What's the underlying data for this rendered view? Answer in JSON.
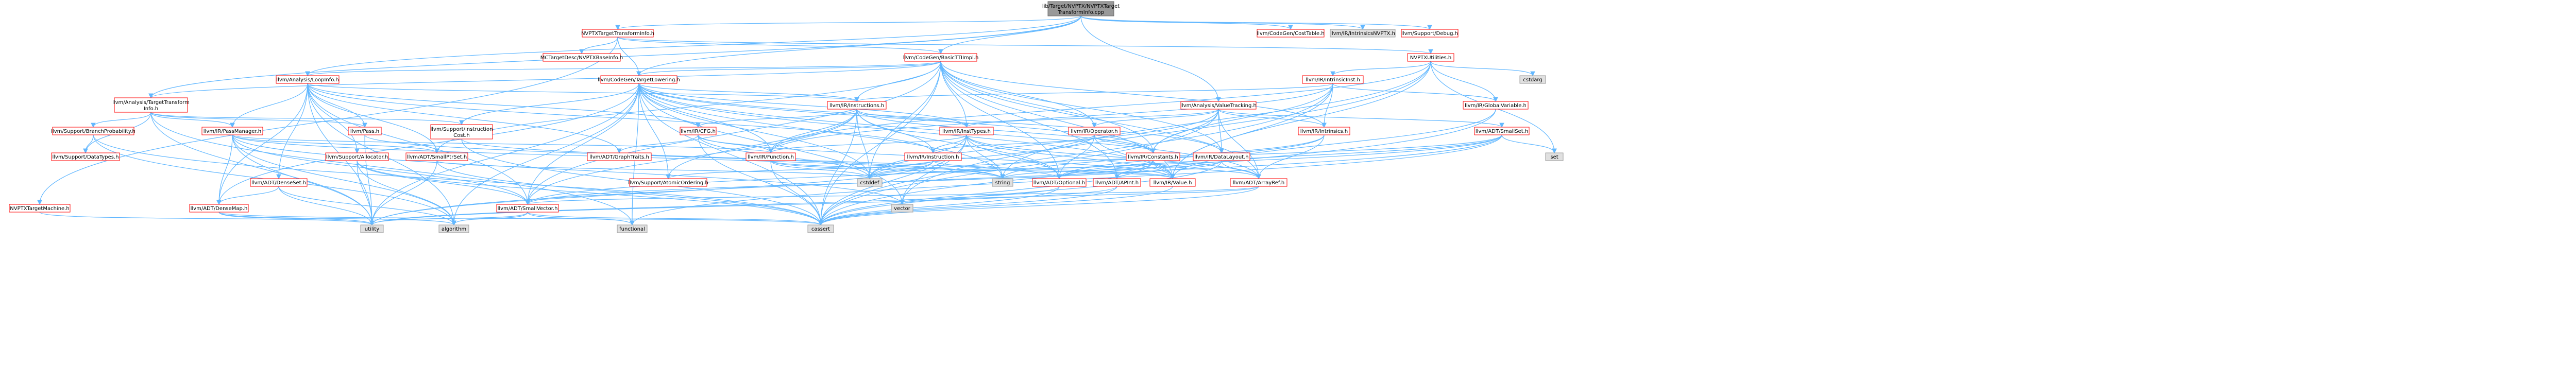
{
  "colors": {
    "edge": "#63b8ff",
    "root_fill": "#999999",
    "root_stroke": "#666666",
    "link_fill": "#ffffff",
    "link_stroke": "#ff0000",
    "ext_fill": "#e0e0e0",
    "ext_stroke": "#999999"
  },
  "nodes": {
    "root": {
      "label1": "lib/Target/NVPTX/NVPTXTarget",
      "label2": "TransformInfo.cpp",
      "kind": "root"
    },
    "nvptxtti": {
      "label": "NVPTXTargetTransformInfo.h",
      "kind": "link"
    },
    "codegencosttable": {
      "label": "llvm/CodeGen/CostTable.h",
      "kind": "link"
    },
    "intrinsicsnvptx": {
      "label": "llvm/IR/IntrinsicsNVPTX.h",
      "kind": "ext"
    },
    "supportdebug": {
      "label": "llvm/Support/Debug.h",
      "kind": "link"
    },
    "nvptxutilities": {
      "label": "NVPTXUtilities.h",
      "kind": "link"
    },
    "mctargetdesc": {
      "label": "MCTargetDesc/NVPTXBaseInfo.h",
      "kind": "link"
    },
    "basicttiimpl": {
      "label": "llvm/CodeGen/BasicTTIImpl.h",
      "kind": "link"
    },
    "loopinfo": {
      "label": "llvm/Analysis/LoopInfo.h",
      "kind": "link"
    },
    "targetlowering": {
      "label": "llvm/CodeGen/TargetLowering.h",
      "kind": "link"
    },
    "intrinsicinst": {
      "label": "llvm/IR/IntrinsicInst.h",
      "kind": "link"
    },
    "cstdarg": {
      "label": "cstdarg",
      "kind": "ext"
    },
    "analysistti": {
      "label": "llvm/Analysis/TargetTransform",
      "label2": "Info.h",
      "kind": "link"
    },
    "irinstructions": {
      "label": "llvm/IR/Instructions.h",
      "kind": "link"
    },
    "valuetracking": {
      "label": "llvm/Analysis/ValueTracking.h",
      "kind": "link"
    },
    "globalvariable": {
      "label": "llvm/IR/GlobalVariable.h",
      "kind": "link"
    },
    "branchprob": {
      "label": "llvm/Support/BranchProbability.h",
      "kind": "link"
    },
    "passmanager": {
      "label": "llvm/IR/PassManager.h",
      "kind": "link"
    },
    "pass": {
      "label": "llvm/Pass.h",
      "kind": "link"
    },
    "instcost": {
      "label": "llvm/Support/Instruction",
      "label2": "Cost.h",
      "kind": "link"
    },
    "cfg": {
      "label": "llvm/IR/CFG.h",
      "kind": "link"
    },
    "insttypes": {
      "label": "llvm/IR/InstTypes.h",
      "kind": "link"
    },
    "operator": {
      "label": "llvm/IR/Operator.h",
      "kind": "link"
    },
    "intrinsics": {
      "label": "llvm/IR/Intrinsics.h",
      "kind": "link"
    },
    "smallset": {
      "label": "llvm/ADT/SmallSet.h",
      "kind": "link"
    },
    "datatypes": {
      "label": "llvm/Support/DataTypes.h",
      "kind": "link"
    },
    "allocator": {
      "label": "llvm/Support/Allocator.h",
      "kind": "link"
    },
    "smallptrset": {
      "label": "llvm/ADT/SmallPtrSet.h",
      "kind": "link"
    },
    "graphtraits": {
      "label": "llvm/ADT/GraphTraits.h",
      "kind": "link"
    },
    "function": {
      "label": "llvm/IR/Function.h",
      "kind": "link"
    },
    "instruction": {
      "label": "llvm/IR/Instruction.h",
      "kind": "link"
    },
    "constants": {
      "label": "llvm/IR/Constants.h",
      "kind": "link"
    },
    "datalayout": {
      "label": "llvm/IR/DataLayout.h",
      "kind": "link"
    },
    "set": {
      "label": "set",
      "kind": "ext"
    },
    "densesetdot": {
      "label": "llvm/ADT/DenseSet.h",
      "kind": "link"
    },
    "atomicordering": {
      "label": "llvm/Support/AtomicOrdering.h",
      "kind": "link"
    },
    "cstddef": {
      "label": "cstddef",
      "kind": "ext"
    },
    "string": {
      "label": "string",
      "kind": "ext"
    },
    "optional": {
      "label": "llvm/ADT/Optional.h",
      "kind": "link"
    },
    "apint": {
      "label": "llvm/ADT/APInt.h",
      "kind": "link"
    },
    "value": {
      "label": "llvm/IR/Value.h",
      "kind": "link"
    },
    "arrayref": {
      "label": "llvm/ADT/ArrayRef.h",
      "kind": "link"
    },
    "nvptxtargetmachine": {
      "label": "NVPTXTargetMachine.h",
      "kind": "link"
    },
    "densemap": {
      "label": "llvm/ADT/DenseMap.h",
      "kind": "link"
    },
    "smallvector": {
      "label": "llvm/ADT/SmallVector.h",
      "kind": "link"
    },
    "vector": {
      "label": "vector",
      "kind": "ext"
    },
    "algorithm": {
      "label": "algorithm",
      "kind": "ext"
    },
    "utility": {
      "label": "utility",
      "kind": "ext"
    },
    "functional": {
      "label": "functional",
      "kind": "ext"
    },
    "cassert": {
      "label": "cassert",
      "kind": "ext"
    }
  }
}
